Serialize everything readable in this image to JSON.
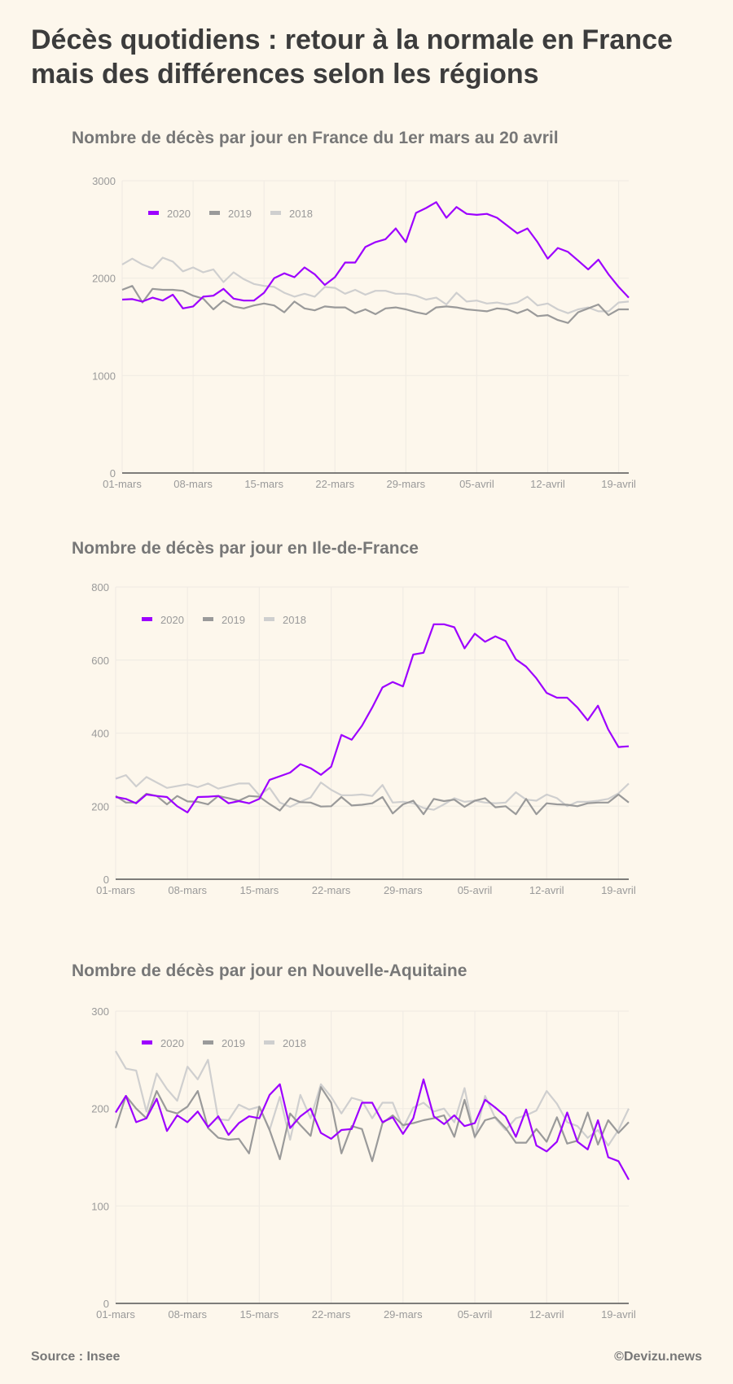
{
  "title": "Décès quotidiens : retour à la normale en France mais des différences selon les régions",
  "source": "Source : Insee",
  "credit": "©Devizu.news",
  "colors": {
    "2020": "#9d00ff",
    "2019": "#9a9a9a",
    "2018": "#cfcfcf",
    "background": "#fdf7ec"
  },
  "chart_data": [
    {
      "type": "line",
      "title": "Nombre de décès par jour en France du 1er mars au 20 avril",
      "xlabel": "",
      "ylabel": "",
      "ylim": [
        0,
        3000
      ],
      "yticks": [
        "0",
        "1000",
        "2000",
        "3000"
      ],
      "ytick_values": [
        0,
        1000,
        2000,
        3000
      ],
      "x_start": "01-mars",
      "x_end": "20-avril",
      "xticks": [
        "01-mars",
        "08-mars",
        "15-mars",
        "22-mars",
        "29-mars",
        "05-avril",
        "12-avril",
        "19-avril"
      ],
      "xtick_days": [
        0,
        7,
        14,
        21,
        28,
        35,
        42,
        49
      ],
      "grid": true,
      "legend": "top-left",
      "series": [
        {
          "name": "2020",
          "values": [
            1780,
            1785,
            1760,
            1800,
            1770,
            1830,
            1690,
            1710,
            1810,
            1820,
            1890,
            1790,
            1770,
            1770,
            1850,
            2000,
            2050,
            2010,
            2110,
            2040,
            1930,
            2010,
            2160,
            2160,
            2320,
            2370,
            2400,
            2510,
            2370,
            2670,
            2720,
            2780,
            2620,
            2730,
            2660,
            2650,
            2660,
            2620,
            2540,
            2460,
            2510,
            2370,
            2200,
            2310,
            2270,
            2180,
            2090,
            2190,
            2040,
            1910,
            1800
          ]
        },
        {
          "name": "2019",
          "values": [
            1880,
            1920,
            1750,
            1890,
            1880,
            1880,
            1870,
            1820,
            1790,
            1680,
            1770,
            1710,
            1690,
            1720,
            1740,
            1720,
            1650,
            1760,
            1690,
            1670,
            1710,
            1700,
            1700,
            1640,
            1680,
            1630,
            1690,
            1700,
            1680,
            1650,
            1630,
            1700,
            1710,
            1700,
            1680,
            1670,
            1660,
            1690,
            1680,
            1640,
            1680,
            1610,
            1620,
            1570,
            1540,
            1650,
            1690,
            1730,
            1620,
            1680,
            1680
          ]
        },
        {
          "name": "2018",
          "values": [
            2140,
            2200,
            2140,
            2100,
            2210,
            2170,
            2070,
            2110,
            2060,
            2090,
            1960,
            2060,
            1990,
            1940,
            1920,
            1910,
            1850,
            1810,
            1840,
            1810,
            1910,
            1900,
            1840,
            1880,
            1830,
            1870,
            1870,
            1840,
            1840,
            1820,
            1780,
            1800,
            1730,
            1850,
            1760,
            1770,
            1740,
            1750,
            1730,
            1750,
            1810,
            1720,
            1740,
            1680,
            1640,
            1680,
            1700,
            1660,
            1660,
            1750,
            1760
          ]
        }
      ]
    },
    {
      "type": "line",
      "title": "Nombre de décès par jour en Ile-de-France",
      "xlabel": "",
      "ylabel": "",
      "ylim": [
        0,
        800
      ],
      "yticks": [
        "0",
        "200",
        "400",
        "600",
        "800"
      ],
      "ytick_values": [
        0,
        200,
        400,
        600,
        800
      ],
      "x_start": "01-mars",
      "x_end": "20-avril",
      "xticks": [
        "01-mars",
        "08-mars",
        "15-mars",
        "22-mars",
        "29-mars",
        "05-avril",
        "12-avril",
        "19-avril"
      ],
      "xtick_days": [
        0,
        7,
        14,
        21,
        28,
        35,
        42,
        49
      ],
      "grid": true,
      "legend": "top-left",
      "series": [
        {
          "name": "2020",
          "values": [
            225,
            220,
            208,
            232,
            228,
            225,
            200,
            183,
            225,
            226,
            228,
            208,
            214,
            208,
            220,
            272,
            282,
            292,
            315,
            304,
            286,
            308,
            395,
            382,
            420,
            470,
            525,
            540,
            528,
            615,
            620,
            698,
            698,
            690,
            632,
            672,
            650,
            665,
            652,
            602,
            582,
            550,
            510,
            497,
            497,
            470,
            435,
            475,
            410,
            362,
            364
          ]
        },
        {
          "name": "2019",
          "values": [
            228,
            210,
            210,
            234,
            228,
            205,
            228,
            213,
            212,
            205,
            228,
            222,
            215,
            228,
            226,
            206,
            188,
            222,
            211,
            210,
            199,
            200,
            225,
            202,
            204,
            208,
            225,
            180,
            205,
            215,
            178,
            220,
            214,
            218,
            198,
            215,
            222,
            197,
            200,
            178,
            220,
            178,
            208,
            205,
            204,
            200,
            208,
            210,
            210,
            232,
            210
          ]
        },
        {
          "name": "2018",
          "values": [
            275,
            285,
            254,
            280,
            265,
            250,
            255,
            260,
            252,
            262,
            248,
            255,
            262,
            262,
            230,
            250,
            210,
            198,
            212,
            224,
            265,
            245,
            230,
            230,
            232,
            228,
            258,
            210,
            212,
            208,
            195,
            190,
            205,
            222,
            212,
            215,
            210,
            208,
            210,
            238,
            218,
            215,
            232,
            222,
            200,
            212,
            212,
            215,
            220,
            235,
            262
          ]
        }
      ]
    },
    {
      "type": "line",
      "title": "Nombre de décès par jour en Nouvelle-Aquitaine",
      "xlabel": "",
      "ylabel": "",
      "ylim": [
        0,
        300
      ],
      "yticks": [
        "0",
        "100",
        "200",
        "300"
      ],
      "ytick_values": [
        0,
        100,
        200,
        300
      ],
      "x_start": "01-mars",
      "x_end": "20-avril",
      "xticks": [
        "01-mars",
        "08-mars",
        "15-mars",
        "22-mars",
        "29-mars",
        "05-avril",
        "12-avril",
        "19-avril"
      ],
      "xtick_days": [
        0,
        7,
        14,
        21,
        28,
        35,
        42,
        49
      ],
      "grid": true,
      "legend": "top-left",
      "series": [
        {
          "name": "2020",
          "values": [
            196,
            213,
            186,
            190,
            210,
            177,
            193,
            186,
            197,
            181,
            192,
            173,
            185,
            192,
            190,
            214,
            225,
            180,
            192,
            200,
            175,
            169,
            178,
            179,
            206,
            206,
            186,
            191,
            174,
            190,
            230,
            192,
            184,
            193,
            182,
            185,
            209,
            201,
            192,
            171,
            199,
            162,
            156,
            166,
            196,
            166,
            158,
            188,
            150,
            146,
            127
          ]
        },
        {
          "name": "2019",
          "values": [
            180,
            213,
            200,
            190,
            218,
            198,
            195,
            202,
            218,
            180,
            170,
            168,
            169,
            154,
            202,
            178,
            148,
            195,
            183,
            172,
            222,
            206,
            154,
            182,
            179,
            146,
            185,
            193,
            183,
            185,
            188,
            190,
            193,
            171,
            209,
            171,
            188,
            191,
            180,
            165,
            165,
            179,
            166,
            191,
            164,
            167,
            196,
            163,
            188,
            175,
            186
          ]
        },
        {
          "name": "2018",
          "values": [
            259,
            241,
            239,
            197,
            236,
            220,
            208,
            243,
            230,
            250,
            189,
            188,
            204,
            199,
            202,
            178,
            212,
            168,
            214,
            190,
            225,
            212,
            195,
            211,
            208,
            190,
            206,
            206,
            180,
            201,
            206,
            197,
            200,
            186,
            221,
            170,
            213,
            190,
            178,
            190,
            193,
            198,
            218,
            205,
            186,
            182,
            170,
            178,
            162,
            178,
            200
          ]
        }
      ]
    }
  ]
}
